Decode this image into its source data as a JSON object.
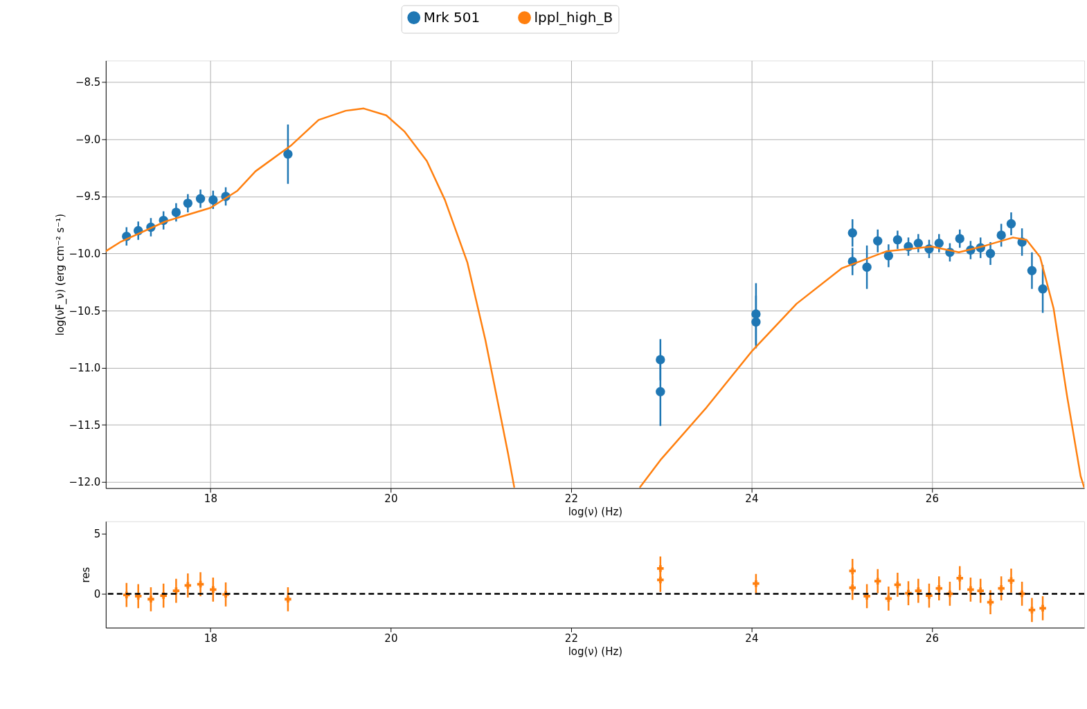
{
  "chart_data": [
    {
      "type": "scatter",
      "xlabel": "log(ν)  (Hz)",
      "ylabel": "log(νF_ν)  (erg cm⁻²  s⁻¹)",
      "xlim": [
        16.84,
        27.69
      ],
      "xticks": [
        18,
        20,
        22,
        24,
        26
      ],
      "ylim": [
        -12.055,
        -8.31
      ],
      "yticks": [
        {
          "value": -12,
          "label": "−12.0"
        },
        -11.5,
        {
          "value": -11,
          "label": "−11.0"
        },
        -10.5,
        {
          "value": -10,
          "label": "−10.0"
        },
        -9.5,
        {
          "value": -9,
          "label": "−9.0"
        },
        -8.5
      ],
      "grid": true,
      "legend": "top",
      "series": [
        {
          "name": "Mrk 501",
          "marker": "circle",
          "color": "#1f77b4",
          "x": [
            17.07,
            17.2,
            17.34,
            17.48,
            17.62,
            17.75,
            17.89,
            18.03,
            18.17,
            18.86,
            22.99,
            22.99,
            24.05,
            24.05,
            25.12,
            25.12,
            25.28,
            25.4,
            25.52,
            25.62,
            25.74,
            25.85,
            25.97,
            26.08,
            26.2,
            26.31,
            26.43,
            26.54,
            26.65,
            26.77,
            26.88,
            27.0,
            27.11,
            27.23
          ],
          "values": [
            -9.85,
            -9.8,
            -9.77,
            -9.71,
            -9.64,
            -9.56,
            -9.52,
            -9.53,
            -9.5,
            -9.13,
            -10.93,
            -11.21,
            -10.53,
            -10.6,
            -9.82,
            -10.07,
            -10.12,
            -9.89,
            -10.02,
            -9.88,
            -9.94,
            -9.91,
            -9.96,
            -9.91,
            -9.99,
            -9.87,
            -9.97,
            -9.95,
            -10.0,
            -9.84,
            -9.74,
            -9.9,
            -10.15,
            -10.31
          ],
          "errors": [
            0.08,
            0.08,
            0.08,
            0.08,
            0.08,
            0.08,
            0.08,
            0.08,
            0.08,
            0.26,
            0.18,
            0.3,
            0.27,
            0.23,
            0.12,
            0.12,
            0.19,
            0.1,
            0.1,
            0.08,
            0.08,
            0.08,
            0.08,
            0.08,
            0.08,
            0.08,
            0.08,
            0.09,
            0.1,
            0.1,
            0.1,
            0.12,
            0.16,
            0.21
          ]
        },
        {
          "name": "lppl_high_B",
          "type": "line",
          "color": "#ff7f0e",
          "x": [
            16.84,
            17.0,
            17.5,
            18.0,
            18.3,
            18.5,
            18.9,
            19.2,
            19.5,
            19.7,
            19.95,
            20.15,
            20.4,
            20.6,
            20.85,
            21.05,
            21.3,
            21.37,
            22.0,
            22.76,
            23.0,
            23.5,
            24.0,
            24.5,
            25.0,
            25.5,
            26.0,
            26.3,
            26.6,
            26.9,
            27.05,
            27.2,
            27.35,
            27.5,
            27.65,
            27.69
          ],
          "values": [
            -9.98,
            -9.9,
            -9.72,
            -9.6,
            -9.45,
            -9.28,
            -9.05,
            -8.83,
            -8.75,
            -8.73,
            -8.79,
            -8.93,
            -9.19,
            -9.53,
            -10.08,
            -10.76,
            -11.75,
            -12.05,
            null,
            -12.05,
            -11.8,
            -11.35,
            -10.86,
            -10.44,
            -10.13,
            -9.98,
            -9.94,
            -9.99,
            -9.93,
            -9.86,
            -9.88,
            -10.03,
            -10.48,
            -11.25,
            -11.95,
            -12.05
          ]
        }
      ]
    },
    {
      "type": "scatter",
      "xlabel": "log(ν)  (Hz)",
      "ylabel": "res",
      "xlim": [
        16.84,
        27.69
      ],
      "xticks": [
        18,
        20,
        22,
        24,
        26
      ],
      "ylim": [
        -2.82,
        6.03
      ],
      "yticks": [
        0,
        5
      ],
      "ref_lines": [
        {
          "axis": "y",
          "value": 0,
          "color": "#000000",
          "line_style": "dashed"
        }
      ],
      "series": [
        {
          "marker": "cross",
          "color": "#ff7f0e",
          "x": [
            17.07,
            17.2,
            17.34,
            17.48,
            17.62,
            17.75,
            17.89,
            18.03,
            18.17,
            18.86,
            22.99,
            22.99,
            24.05,
            25.12,
            25.12,
            25.28,
            25.4,
            25.52,
            25.62,
            25.74,
            25.85,
            25.97,
            26.08,
            26.2,
            26.31,
            26.43,
            26.54,
            26.65,
            26.77,
            26.88,
            27.0,
            27.11,
            27.23
          ],
          "values": [
            -0.1,
            -0.2,
            -0.45,
            -0.15,
            0.25,
            0.7,
            0.8,
            0.35,
            -0.05,
            -0.45,
            2.1,
            1.15,
            0.85,
            1.9,
            0.5,
            -0.2,
            1.05,
            -0.4,
            0.75,
            0.05,
            0.25,
            -0.15,
            0.45,
            0.0,
            1.3,
            0.35,
            0.25,
            -0.7,
            0.45,
            1.1,
            0.0,
            -1.35,
            -1.2
          ],
          "errors": [
            1.0,
            1.0,
            1.0,
            1.0,
            1.0,
            1.0,
            1.0,
            1.0,
            1.0,
            1.0,
            1.0,
            1.0,
            0.8,
            1.0,
            1.0,
            1.0,
            1.0,
            1.0,
            1.0,
            1.0,
            1.0,
            1.0,
            1.0,
            1.0,
            1.0,
            1.0,
            1.0,
            1.0,
            1.0,
            1.0,
            1.0,
            1.0,
            1.0
          ]
        }
      ]
    }
  ]
}
